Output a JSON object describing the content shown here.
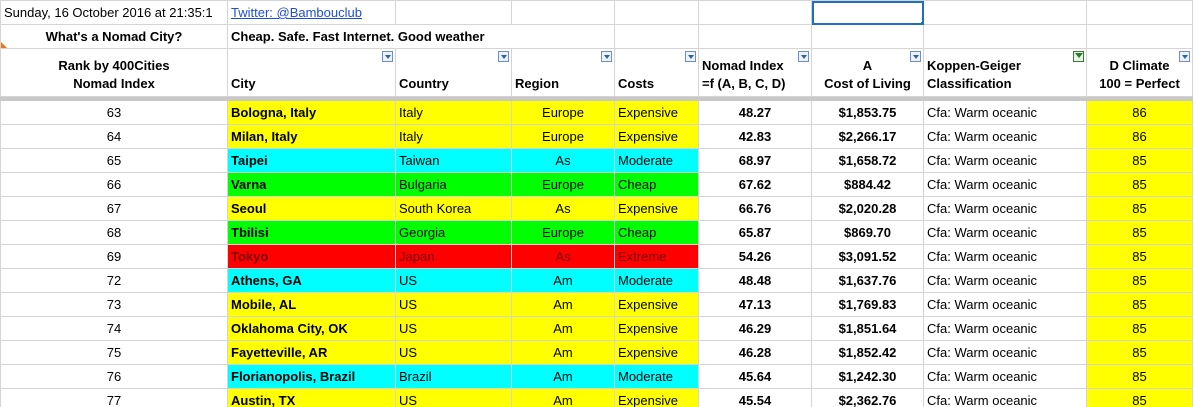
{
  "top_row": {
    "timestamp": "Sunday, 16 October 2016 at 21:35:1",
    "twitter": "Twitter: @Bambouclub"
  },
  "second_row": {
    "question": "What's a Nomad City?",
    "tagline": "Cheap. Safe. Fast Internet. Good weather"
  },
  "headers": {
    "rank_line1": "Rank by 400Cities",
    "rank_line2": "Nomad Index",
    "city": "City",
    "country": "Country",
    "region": "Region",
    "costs": "Costs",
    "nomad_line1": "Nomad Index",
    "nomad_line2": "=f (A, B, C, D)",
    "a_line1": "A",
    "a_line2": "Cost of Living",
    "koppen_line1": "Koppen-Geiger",
    "koppen_line2": "Classification",
    "climate_line1": "D  Climate",
    "climate_line2": "100 = Perfect"
  },
  "colors": {
    "yellow": "#ffff00",
    "cyan": "#00ffff",
    "green": "#00ff00",
    "red": "#ff0000"
  },
  "rows": [
    {
      "rank": "63",
      "city": "Bologna, Italy",
      "country": "Italy",
      "region": "Europe",
      "costs": "Expensive",
      "nomad": "48.27",
      "cost": "$1,853.75",
      "koppen": "Cfa: Warm oceanic",
      "climate": "86",
      "color": "yellow"
    },
    {
      "rank": "64",
      "city": "Milan, Italy",
      "country": "Italy",
      "region": "Europe",
      "costs": "Expensive",
      "nomad": "42.83",
      "cost": "$2,266.17",
      "koppen": "Cfa: Warm oceanic",
      "climate": "86",
      "color": "yellow"
    },
    {
      "rank": "65",
      "city": "Taipei",
      "country": "Taiwan",
      "region": "As",
      "costs": "Moderate",
      "nomad": "68.97",
      "cost": "$1,658.72",
      "koppen": "Cfa: Warm oceanic",
      "climate": "85",
      "color": "cyan"
    },
    {
      "rank": "66",
      "city": "Varna",
      "country": "Bulgaria",
      "region": "Europe",
      "costs": "Cheap",
      "nomad": "67.62",
      "cost": "$884.42",
      "koppen": "Cfa: Warm oceanic",
      "climate": "85",
      "color": "green"
    },
    {
      "rank": "67",
      "city": "Seoul",
      "country": "South Korea",
      "region": "As",
      "costs": "Expensive",
      "nomad": "66.76",
      "cost": "$2,020.28",
      "koppen": "Cfa: Warm oceanic",
      "climate": "85",
      "color": "yellow"
    },
    {
      "rank": "68",
      "city": "Tbilisi",
      "country": "Georgia",
      "region": "Europe",
      "costs": "Cheap",
      "nomad": "65.87",
      "cost": "$869.70",
      "koppen": "Cfa: Warm oceanic",
      "climate": "85",
      "color": "green"
    },
    {
      "rank": "69",
      "city": "Tokyo",
      "country": "Japan",
      "region": "As",
      "costs": "Extreme",
      "nomad": "54.26",
      "cost": "$3,091.52",
      "koppen": "Cfa: Warm oceanic",
      "climate": "85",
      "color": "red"
    },
    {
      "rank": "72",
      "city": "Athens, GA",
      "country": "US",
      "region": "Am",
      "costs": "Moderate",
      "nomad": "48.48",
      "cost": "$1,637.76",
      "koppen": "Cfa: Warm oceanic",
      "climate": "85",
      "color": "cyan"
    },
    {
      "rank": "73",
      "city": "Mobile, AL",
      "country": "US",
      "region": "Am",
      "costs": "Expensive",
      "nomad": "47.13",
      "cost": "$1,769.83",
      "koppen": "Cfa: Warm oceanic",
      "climate": "85",
      "color": "yellow"
    },
    {
      "rank": "74",
      "city": "Oklahoma City, OK",
      "country": "US",
      "region": "Am",
      "costs": "Expensive",
      "nomad": "46.29",
      "cost": "$1,851.64",
      "koppen": "Cfa: Warm oceanic",
      "climate": "85",
      "color": "yellow"
    },
    {
      "rank": "75",
      "city": "Fayetteville, AR",
      "country": "US",
      "region": "Am",
      "costs": "Expensive",
      "nomad": "46.28",
      "cost": "$1,852.42",
      "koppen": "Cfa: Warm oceanic",
      "climate": "85",
      "color": "yellow"
    },
    {
      "rank": "76",
      "city": "Florianopolis, Brazil",
      "country": "Brazil",
      "region": "Am",
      "costs": "Moderate",
      "nomad": "45.64",
      "cost": "$1,242.30",
      "koppen": "Cfa: Warm oceanic",
      "climate": "85",
      "color": "cyan"
    },
    {
      "rank": "77",
      "city": "Austin, TX",
      "country": "US",
      "region": "Am",
      "costs": "Expensive",
      "nomad": "45.54",
      "cost": "$2,362.76",
      "koppen": "Cfa: Warm oceanic",
      "climate": "85",
      "color": "yellow"
    }
  ]
}
